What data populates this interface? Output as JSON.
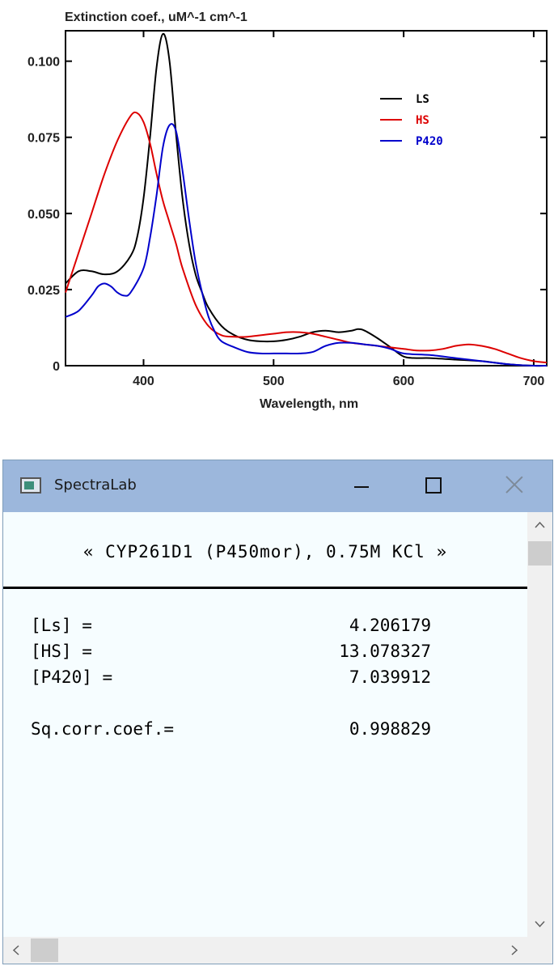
{
  "chart_data": {
    "type": "line",
    "title": "Extinction coef., uM^-1 cm^-1",
    "xlabel": "Wavelength, nm",
    "ylabel": "",
    "xlim": [
      340,
      710
    ],
    "ylim": [
      0,
      0.11
    ],
    "xticks": [
      400,
      500,
      600,
      700
    ],
    "xtick_labels": [
      "400",
      "500",
      "600",
      "700"
    ],
    "yticks": [
      0,
      0.025,
      0.05,
      0.075,
      0.1
    ],
    "ytick_labels": [
      "0",
      "0.025",
      "0.050",
      "0.075",
      "0.100"
    ],
    "grid": false,
    "legend_position": "top-right",
    "series": [
      {
        "name": "LS",
        "color": "#000000",
        "x": [
          340,
          350,
          360,
          370,
          380,
          390,
          395,
          400,
          405,
          410,
          415,
          420,
          425,
          430,
          435,
          440,
          445,
          450,
          460,
          470,
          480,
          490,
          500,
          510,
          520,
          530,
          540,
          550,
          560,
          565,
          570,
          580,
          590,
          600,
          610,
          620,
          640,
          660,
          680,
          700,
          710
        ],
        "y": [
          0.027,
          0.031,
          0.031,
          0.03,
          0.031,
          0.036,
          0.042,
          0.055,
          0.075,
          0.098,
          0.109,
          0.1,
          0.076,
          0.055,
          0.04,
          0.03,
          0.024,
          0.019,
          0.013,
          0.01,
          0.0085,
          0.008,
          0.008,
          0.0085,
          0.0095,
          0.011,
          0.0115,
          0.011,
          0.0115,
          0.012,
          0.0115,
          0.009,
          0.006,
          0.003,
          0.0025,
          0.0025,
          0.002,
          0.0015,
          0.0005,
          0.0,
          0.0
        ]
      },
      {
        "name": "HS",
        "color": "#dd0000",
        "x": [
          340,
          350,
          360,
          370,
          380,
          390,
          395,
          400,
          405,
          410,
          415,
          420,
          425,
          430,
          440,
          450,
          460,
          470,
          480,
          490,
          500,
          510,
          520,
          530,
          540,
          550,
          560,
          570,
          580,
          590,
          600,
          610,
          620,
          630,
          640,
          650,
          660,
          670,
          680,
          690,
          700,
          710
        ],
        "y": [
          0.024,
          0.037,
          0.05,
          0.063,
          0.074,
          0.082,
          0.083,
          0.08,
          0.073,
          0.063,
          0.054,
          0.047,
          0.04,
          0.032,
          0.02,
          0.013,
          0.01,
          0.0095,
          0.0095,
          0.01,
          0.0105,
          0.011,
          0.011,
          0.0105,
          0.0095,
          0.0085,
          0.0075,
          0.007,
          0.0065,
          0.006,
          0.0055,
          0.005,
          0.005,
          0.0055,
          0.0065,
          0.007,
          0.0065,
          0.0055,
          0.004,
          0.0025,
          0.0015,
          0.001
        ]
      },
      {
        "name": "P420",
        "color": "#0000cc",
        "x": [
          340,
          350,
          360,
          365,
          370,
          375,
          380,
          385,
          390,
          400,
          405,
          410,
          415,
          420,
          425,
          430,
          435,
          440,
          445,
          450,
          455,
          460,
          470,
          480,
          490,
          500,
          510,
          520,
          530,
          540,
          550,
          560,
          570,
          580,
          590,
          600,
          620,
          640,
          660,
          680,
          700,
          710
        ],
        "y": [
          0.016,
          0.018,
          0.023,
          0.026,
          0.027,
          0.026,
          0.024,
          0.023,
          0.024,
          0.032,
          0.042,
          0.056,
          0.072,
          0.079,
          0.077,
          0.064,
          0.048,
          0.034,
          0.024,
          0.016,
          0.011,
          0.008,
          0.006,
          0.0045,
          0.004,
          0.004,
          0.004,
          0.004,
          0.0045,
          0.0065,
          0.0075,
          0.0075,
          0.007,
          0.0065,
          0.0055,
          0.004,
          0.0035,
          0.0025,
          0.0015,
          0.0005,
          0.0,
          0.0
        ]
      }
    ]
  },
  "window": {
    "title": "SpectraLab",
    "header": "« CYP261D1 (P450mor), 0.75M KCl »",
    "rows": [
      {
        "label": "[Ls] =",
        "value": "4.206179"
      },
      {
        "label": "[HS] =",
        "value": "13.078327"
      },
      {
        "label": "[P420] =",
        "value": "7.039912"
      },
      {
        "label": "Sq.corr.coef.=",
        "value": "0.998829"
      }
    ]
  }
}
